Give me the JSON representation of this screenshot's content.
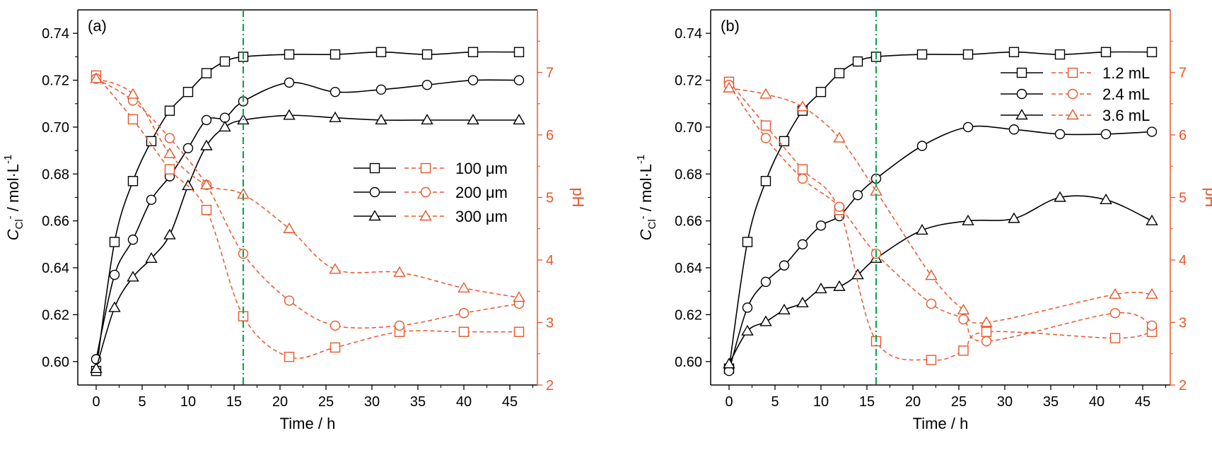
{
  "colors": {
    "conc": "#000000",
    "ph": "#e8562a",
    "marker": "#16a34a"
  },
  "chart_data": [
    {
      "type": "line",
      "panel_label": "(a)",
      "xlabel": "Time / h",
      "ylabel_left": "C",
      "ylabel_sub": "Cl",
      "ylabel_sup": "-",
      "ylabel_rest": " / mol·L",
      "ylabel_exp": "-1",
      "ylabel_right": "pH",
      "xlim": [
        -2,
        48
      ],
      "ylim_left": [
        0.59,
        0.75
      ],
      "ylim_right": [
        2,
        8
      ],
      "x_ticks": [
        0,
        5,
        10,
        15,
        20,
        25,
        30,
        35,
        40,
        45
      ],
      "y_ticks_left": [
        0.6,
        0.62,
        0.64,
        0.66,
        0.68,
        0.7,
        0.72,
        0.74
      ],
      "y_ticks_right": [
        2,
        3,
        4,
        5,
        6,
        7
      ],
      "vertical_line_x": 16,
      "series": [
        {
          "name": "100 μm",
          "axis": "left",
          "marker": "square",
          "x": [
            0,
            2,
            4,
            6,
            8,
            10,
            12,
            14,
            16,
            21,
            26,
            31,
            36,
            41,
            46
          ],
          "y": [
            0.596,
            0.651,
            0.677,
            0.694,
            0.707,
            0.715,
            0.723,
            0.728,
            0.73,
            0.731,
            0.731,
            0.732,
            0.731,
            0.732,
            0.732
          ]
        },
        {
          "name": "200 μm",
          "axis": "left",
          "marker": "circle",
          "x": [
            0,
            2,
            4,
            6,
            8,
            10,
            12,
            14,
            16,
            21,
            26,
            31,
            36,
            41,
            46
          ],
          "y": [
            0.601,
            0.637,
            0.652,
            0.669,
            0.679,
            0.691,
            0.703,
            0.704,
            0.711,
            0.719,
            0.715,
            0.716,
            0.718,
            0.72,
            0.72
          ]
        },
        {
          "name": "300 μm",
          "axis": "left",
          "marker": "triangle",
          "x": [
            0,
            2,
            4,
            6,
            8,
            10,
            12,
            14,
            16,
            21,
            26,
            31,
            36,
            41,
            46
          ],
          "y": [
            0.597,
            0.623,
            0.636,
            0.644,
            0.654,
            0.675,
            0.692,
            0.7,
            0.703,
            0.705,
            0.704,
            0.703,
            0.703,
            0.703,
            0.703
          ]
        },
        {
          "name": "100 μm",
          "axis": "right",
          "marker": "square",
          "x": [
            0,
            4,
            8,
            12,
            16,
            21,
            26,
            33,
            40,
            46
          ],
          "y": [
            6.95,
            6.25,
            5.45,
            4.8,
            3.1,
            2.45,
            2.6,
            2.85,
            2.85,
            2.85
          ]
        },
        {
          "name": "200 μm",
          "axis": "right",
          "marker": "circle",
          "x": [
            0,
            4,
            8,
            12,
            16,
            21,
            26,
            33,
            40,
            46
          ],
          "y": [
            6.9,
            6.55,
            5.95,
            5.2,
            4.1,
            3.35,
            2.95,
            2.95,
            3.15,
            3.3
          ]
        },
        {
          "name": "300 μm",
          "axis": "right",
          "marker": "triangle",
          "x": [
            0,
            4,
            8,
            12,
            16,
            21,
            26,
            33,
            40,
            46
          ],
          "y": [
            6.9,
            6.65,
            5.7,
            5.2,
            5.05,
            4.5,
            3.85,
            3.8,
            3.55,
            3.4
          ]
        }
      ],
      "legend": [
        {
          "label": "100 μm"
        },
        {
          "label": "200 μm"
        },
        {
          "label": "300 μm"
        }
      ],
      "legend_position": "right-middle"
    },
    {
      "type": "line",
      "panel_label": "(b)",
      "xlabel": "Time / h",
      "ylabel_left": "C",
      "ylabel_sub": "Cl",
      "ylabel_sup": "-",
      "ylabel_rest": " / mol·L",
      "ylabel_exp": "-1",
      "ylabel_right": "pH",
      "xlim": [
        -2,
        48
      ],
      "ylim_left": [
        0.59,
        0.75
      ],
      "ylim_right": [
        2,
        8
      ],
      "x_ticks": [
        0,
        5,
        10,
        15,
        20,
        25,
        30,
        35,
        40,
        45
      ],
      "y_ticks_left": [
        0.6,
        0.62,
        0.64,
        0.66,
        0.68,
        0.7,
        0.72,
        0.74
      ],
      "y_ticks_right": [
        2,
        3,
        4,
        5,
        6,
        7
      ],
      "vertical_line_x": 16,
      "series": [
        {
          "name": "1.2 mL",
          "axis": "left",
          "marker": "square",
          "x": [
            0,
            2,
            4,
            6,
            8,
            10,
            12,
            14,
            16,
            21,
            26,
            31,
            36,
            41,
            46
          ],
          "y": [
            0.597,
            0.651,
            0.677,
            0.694,
            0.707,
            0.715,
            0.723,
            0.728,
            0.73,
            0.731,
            0.731,
            0.732,
            0.731,
            0.732,
            0.732
          ]
        },
        {
          "name": "2.4 mL",
          "axis": "left",
          "marker": "circle",
          "x": [
            0,
            2,
            4,
            6,
            8,
            10,
            12,
            14,
            16,
            21,
            26,
            31,
            36,
            41,
            46
          ],
          "y": [
            0.596,
            0.623,
            0.634,
            0.641,
            0.65,
            0.658,
            0.662,
            0.671,
            0.678,
            0.692,
            0.7,
            0.699,
            0.697,
            0.697,
            0.698
          ]
        },
        {
          "name": "3.6 mL",
          "axis": "left",
          "marker": "triangle",
          "x": [
            0,
            2,
            4,
            6,
            8,
            10,
            12,
            14,
            16,
            21,
            26,
            31,
            36,
            41,
            46
          ],
          "y": [
            0.599,
            0.613,
            0.617,
            0.622,
            0.625,
            0.631,
            0.632,
            0.637,
            0.644,
            0.656,
            0.66,
            0.661,
            0.67,
            0.669,
            0.66
          ]
        },
        {
          "name": "1.2 mL",
          "axis": "right",
          "marker": "square",
          "x": [
            0,
            4,
            8,
            12,
            16,
            22,
            25.5,
            28,
            42,
            46
          ],
          "y": [
            6.85,
            6.15,
            5.45,
            4.8,
            2.7,
            2.4,
            2.55,
            2.85,
            2.75,
            2.85
          ]
        },
        {
          "name": "2.4 mL",
          "axis": "right",
          "marker": "circle",
          "x": [
            0,
            4,
            8,
            12,
            16,
            22,
            25.5,
            28,
            42,
            46
          ],
          "y": [
            6.8,
            5.95,
            5.3,
            4.85,
            4.1,
            3.3,
            3.05,
            2.7,
            3.15,
            2.95
          ]
        },
        {
          "name": "3.6 mL",
          "axis": "right",
          "marker": "triangle",
          "x": [
            0,
            4,
            8,
            12,
            16,
            22,
            25.5,
            28,
            42,
            46
          ],
          "y": [
            6.75,
            6.65,
            6.45,
            5.95,
            5.1,
            3.75,
            3.2,
            3.0,
            3.45,
            3.45
          ]
        }
      ],
      "legend": [
        {
          "label": "1.2 mL"
        },
        {
          "label": "2.4 mL"
        },
        {
          "label": "3.6 mL"
        }
      ],
      "legend_position": "top-right"
    }
  ]
}
